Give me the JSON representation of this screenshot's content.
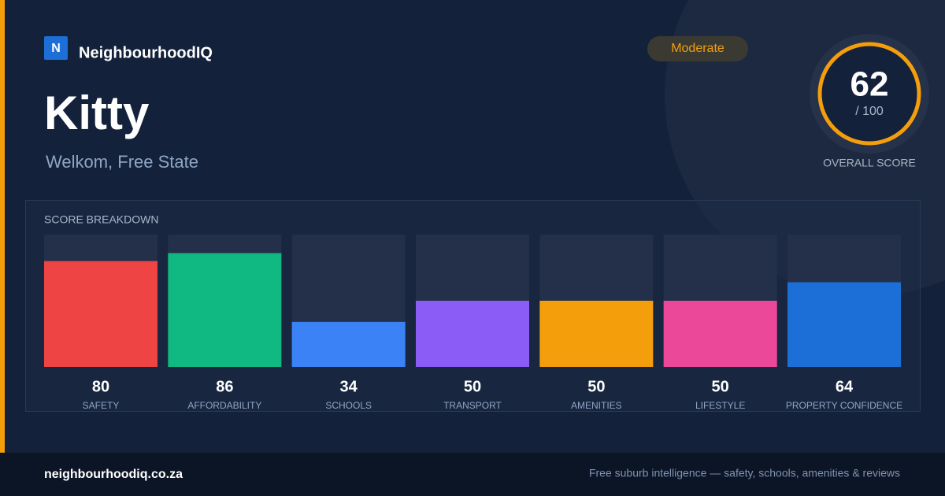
{
  "header": {
    "logo_mark": "N",
    "brand": "NeighbourhoodIQ",
    "title": "Kitty",
    "subtitle": "Welkom, Free State",
    "badge": "Moderate"
  },
  "score": {
    "value": 62,
    "max_label": "/ 100",
    "label": "OVERALL SCORE"
  },
  "chart_data": {
    "type": "bar",
    "title": "SCORE BREAKDOWN",
    "categories": [
      "SAFETY",
      "AFFORDABILITY",
      "SCHOOLS",
      "TRANSPORT",
      "AMENITIES",
      "LIFESTYLE",
      "PROPERTY CONFIDENCE"
    ],
    "values": [
      80,
      86,
      34,
      50,
      50,
      50,
      64
    ],
    "colors": [
      "#ef4444",
      "#10b981",
      "#3b82f6",
      "#8b5cf6",
      "#f59e0b",
      "#ec4899",
      "#1d6fd8"
    ],
    "ylim": [
      0,
      100
    ]
  },
  "footer": {
    "site": "neighbourhoodiq.co.za",
    "tagline": "Free suburb intelligence — safety, schools, amenities & reviews"
  }
}
